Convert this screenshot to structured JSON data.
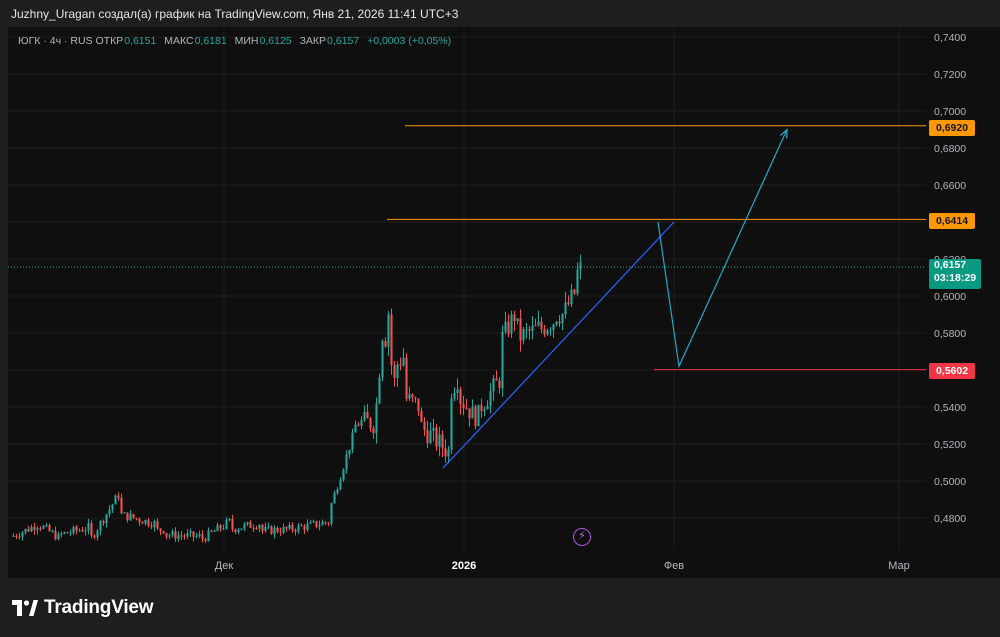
{
  "header": {
    "text": "Juzhny_Uragan создал(а) график на TradingView.com, Янв 21, 2026 11:41 UTC+3"
  },
  "legend": {
    "symbol": "ЮГК · 4ч · RUS",
    "open_label": "ОТКР",
    "open": "0,6151",
    "high_label": "МАКС",
    "high": "0,6181",
    "low_label": "МИН",
    "low": "0,6125",
    "close_label": "ЗАКР",
    "close": "0,6157",
    "change": "+0,0003 (+0,05%)"
  },
  "badges": {
    "level_1": "0,6920",
    "level_2": "0,6414",
    "level_3": "0,5602",
    "current_price": "0,6157",
    "countdown": "03:18:29"
  },
  "footer": {
    "brand": "TradingView"
  },
  "colors": {
    "background": "#0f0f0f",
    "up": "#26a69a",
    "down": "#ef5350",
    "resistance": "#ff9800",
    "support": "#f23645",
    "trendline": "#2962ff",
    "projection": "#22a8c8"
  },
  "chart_data": {
    "type": "candlestick",
    "title": "ЮГК · 4ч · RUS",
    "y_axis_ticks": [
      "0,7400",
      "0,7200",
      "0,7000",
      "0,6800",
      "0,6600",
      "0,6400",
      "0,6200",
      "0,6000",
      "0,5800",
      "0,5600",
      "0,5400",
      "0,5200",
      "0,5000",
      "0,4800"
    ],
    "x_axis_ticks": [
      "Дек",
      "2026",
      "Фев",
      "Мар"
    ],
    "ylim": [
      0.465,
      0.745
    ],
    "price_path_nodes": [
      [
        0.474,
        0.47
      ],
      [
        0.477,
        0.476
      ],
      [
        0.469,
        0.471
      ],
      [
        0.475,
        0.468
      ],
      [
        0.494,
        0.482
      ],
      [
        0.477,
        0.473
      ],
      [
        0.474,
        0.471
      ],
      [
        0.47,
        0.468
      ],
      [
        0.478,
        0.474
      ],
      [
        0.477,
        0.473
      ],
      [
        0.474,
        0.474
      ],
      [
        0.478,
        0.485
      ],
      [
        0.528,
        0.53
      ],
      [
        0.532,
        0.532
      ],
      [
        0.531,
        0.532
      ],
      [
        0.596,
        0.575
      ],
      [
        0.598,
        0.568
      ],
      [
        0.552,
        0.562
      ],
      [
        0.568,
        0.545
      ],
      [
        0.54,
        0.53
      ],
      [
        0.515,
        0.548
      ],
      [
        0.558,
        0.545
      ],
      [
        0.538,
        0.536
      ],
      [
        0.535,
        0.54
      ],
      [
        0.555,
        0.575
      ],
      [
        0.59,
        0.58
      ],
      [
        0.585,
        0.578
      ],
      [
        0.583,
        0.582
      ],
      [
        0.587,
        0.59
      ],
      [
        0.59,
        0.592
      ],
      [
        0.602,
        0.611
      ],
      [
        0.6157,
        0.6157
      ]
    ],
    "levels": [
      {
        "price": 0.692,
        "label": "0,6920",
        "color": "#ff9800"
      },
      {
        "price": 0.6414,
        "label": "0,6414",
        "color": "#ff9800"
      },
      {
        "price": 0.5602,
        "label": "0,5602",
        "color": "#f23645"
      }
    ],
    "current_price": 0.6157,
    "trendline": [
      [
        0.507,
        0.507
      ],
      [
        0.64,
        0.64
      ]
    ],
    "projection_path": [
      0.64,
      0.562,
      0.69
    ],
    "grid": true
  }
}
